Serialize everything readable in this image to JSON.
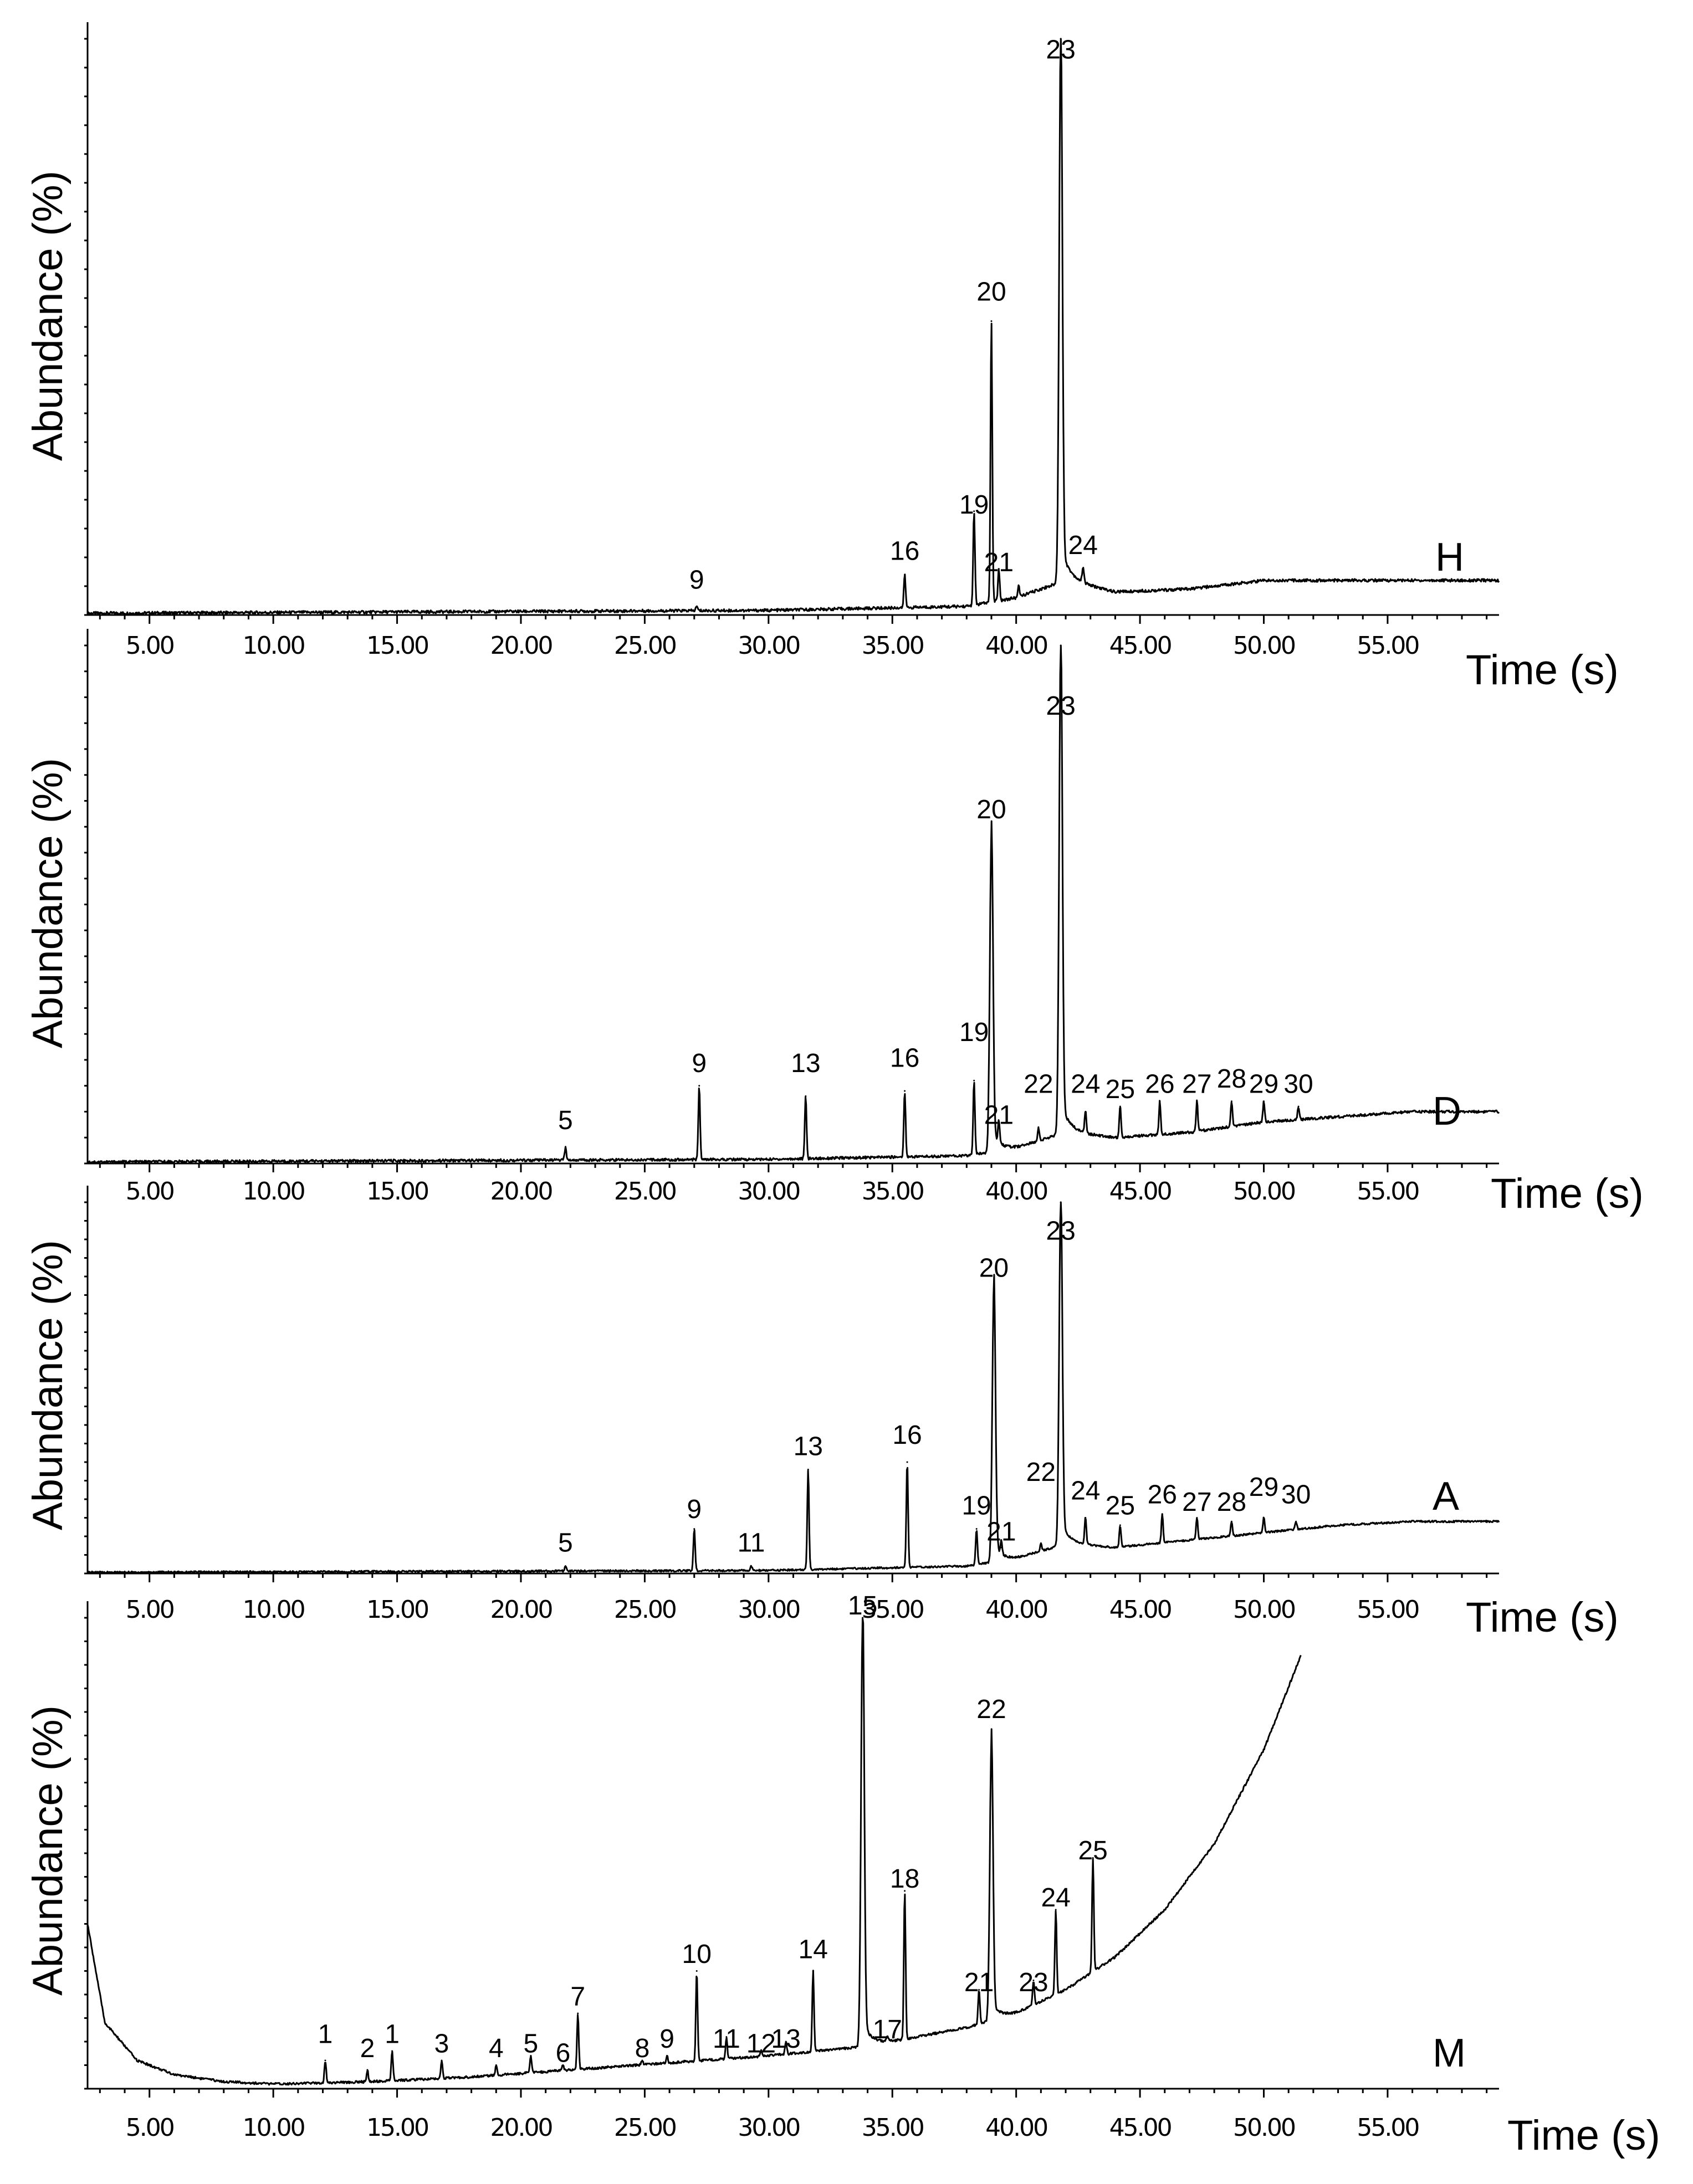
{
  "chart_data": [
    {
      "type": "line",
      "panel": "H",
      "xlabel": "Time (s)",
      "ylabel": "Abundance (%)",
      "x_ticks": [
        "5.00",
        "10.00",
        "15.00",
        "20.00",
        "25.00",
        "30.00",
        "35.00",
        "40.00",
        "45.00",
        "50.00",
        "55.00"
      ],
      "xlim": [
        2.5,
        59.5
      ],
      "ylim": [
        0,
        100
      ],
      "baseline": [
        [
          2.5,
          0.3
        ],
        [
          30,
          0.8
        ],
        [
          38,
          1.5
        ],
        [
          40,
          3
        ],
        [
          42,
          6
        ],
        [
          44,
          4
        ],
        [
          47,
          4.5
        ],
        [
          50,
          6
        ],
        [
          53,
          6
        ],
        [
          56,
          6
        ],
        [
          59.5,
          6
        ]
      ],
      "peaks": [
        {
          "label": "9",
          "rt": 27.1,
          "height": 1.5,
          "label_height": 4
        },
        {
          "label": "16",
          "rt": 35.5,
          "height": 7,
          "label_height": 9
        },
        {
          "label": "19",
          "rt": 38.3,
          "height": 18,
          "label_height": 17
        },
        {
          "label": "20",
          "rt": 39.0,
          "height": 51,
          "label_height": 54
        },
        {
          "label": "21",
          "rt": 39.3,
          "height": 8,
          "label_height": 7
        },
        {
          "label": "",
          "rt": 40.1,
          "height": 5,
          "label_height": 0
        },
        {
          "label": "23",
          "rt": 41.8,
          "height": 100,
          "label_height": 96
        },
        {
          "label": "24",
          "rt": 42.7,
          "height": 8,
          "label_height": 10
        }
      ]
    },
    {
      "type": "line",
      "panel": "D",
      "xlabel": "Time (s)",
      "ylabel": "Abundance (%)",
      "x_ticks": [
        "5.00",
        "10.00",
        "15.00",
        "20.00",
        "25.00",
        "30.00",
        "35.00",
        "40.00",
        "45.00",
        "50.00",
        "55.00"
      ],
      "xlim": [
        2.5,
        59.5
      ],
      "ylim": [
        0,
        100
      ],
      "baseline": [
        [
          2.5,
          0.3
        ],
        [
          30,
          0.8
        ],
        [
          38,
          1.5
        ],
        [
          40,
          3
        ],
        [
          42,
          6
        ],
        [
          44,
          5
        ],
        [
          47,
          6
        ],
        [
          50,
          8
        ],
        [
          53,
          9
        ],
        [
          56,
          10
        ],
        [
          59.5,
          10
        ]
      ],
      "peaks": [
        {
          "label": "5",
          "rt": 21.8,
          "height": 3,
          "label_height": 6
        },
        {
          "label": "9",
          "rt": 27.2,
          "height": 15,
          "label_height": 17
        },
        {
          "label": "13",
          "rt": 31.5,
          "height": 13,
          "label_height": 17
        },
        {
          "label": "16",
          "rt": 35.5,
          "height": 14,
          "label_height": 18
        },
        {
          "label": "19",
          "rt": 38.3,
          "height": 16,
          "label_height": 23
        },
        {
          "label": "20",
          "rt": 39.0,
          "height": 63,
          "label_height": 66
        },
        {
          "label": "21",
          "rt": 39.3,
          "height": 7,
          "label_height": 7
        },
        {
          "label": "22",
          "rt": 40.9,
          "height": 7,
          "label_height": 13
        },
        {
          "label": "23",
          "rt": 41.8,
          "height": 100,
          "label_height": 86
        },
        {
          "label": "24",
          "rt": 42.8,
          "height": 10,
          "label_height": 13
        },
        {
          "label": "25",
          "rt": 44.2,
          "height": 11,
          "label_height": 12
        },
        {
          "label": "26",
          "rt": 45.8,
          "height": 12,
          "label_height": 13
        },
        {
          "label": "27",
          "rt": 47.3,
          "height": 12,
          "label_height": 13
        },
        {
          "label": "28",
          "rt": 48.7,
          "height": 12,
          "label_height": 14
        },
        {
          "label": "29",
          "rt": 50.0,
          "height": 12,
          "label_height": 13
        },
        {
          "label": "30",
          "rt": 51.4,
          "height": 11,
          "label_height": 13
        }
      ]
    },
    {
      "type": "line",
      "panel": "A",
      "xlabel": "Time (s)",
      "ylabel": "Abundance (%)",
      "x_ticks": [
        "5.00",
        "10.00",
        "15.00",
        "20.00",
        "25.00",
        "30.00",
        "35.00",
        "40.00",
        "45.00",
        "50.00",
        "55.00"
      ],
      "xlim": [
        2.5,
        59.5
      ],
      "ylim": [
        0,
        100
      ],
      "baseline": [
        [
          2.5,
          0.3
        ],
        [
          30,
          0.8
        ],
        [
          38,
          2
        ],
        [
          40,
          4
        ],
        [
          42,
          8
        ],
        [
          44,
          7
        ],
        [
          47,
          9
        ],
        [
          50,
          11
        ],
        [
          53,
          13
        ],
        [
          56,
          14
        ],
        [
          59.5,
          14
        ]
      ],
      "peaks": [
        {
          "label": "5",
          "rt": 21.8,
          "height": 2,
          "label_height": 5
        },
        {
          "label": "9",
          "rt": 27.0,
          "height": 12,
          "label_height": 14
        },
        {
          "label": "11",
          "rt": 29.3,
          "height": 2,
          "label_height": 5
        },
        {
          "label": "13",
          "rt": 31.6,
          "height": 28,
          "label_height": 31
        },
        {
          "label": "16",
          "rt": 35.6,
          "height": 30,
          "label_height": 34
        },
        {
          "label": "19",
          "rt": 38.4,
          "height": 12,
          "label_height": 15
        },
        {
          "label": "20",
          "rt": 39.1,
          "height": 77,
          "label_height": 79
        },
        {
          "label": "21",
          "rt": 39.4,
          "height": 7,
          "label_height": 8
        },
        {
          "label": "22",
          "rt": 41.0,
          "height": 8,
          "label_height": 24
        },
        {
          "label": "23",
          "rt": 41.8,
          "height": 100,
          "label_height": 89
        },
        {
          "label": "24",
          "rt": 42.8,
          "height": 15,
          "label_height": 19
        },
        {
          "label": "25",
          "rt": 44.2,
          "height": 13,
          "label_height": 15
        },
        {
          "label": "26",
          "rt": 45.9,
          "height": 16,
          "label_height": 18
        },
        {
          "label": "27",
          "rt": 47.3,
          "height": 15,
          "label_height": 16
        },
        {
          "label": "28",
          "rt": 48.7,
          "height": 14,
          "label_height": 16
        },
        {
          "label": "29",
          "rt": 50.0,
          "height": 15,
          "label_height": 20
        },
        {
          "label": "30",
          "rt": 51.3,
          "height": 14,
          "label_height": 18
        }
      ]
    },
    {
      "type": "line",
      "panel": "M",
      "xlabel": "Time (s)",
      "ylabel": "Abundance (%)",
      "x_ticks": [
        "5.00",
        "10.00",
        "15.00",
        "20.00",
        "25.00",
        "30.00",
        "35.00",
        "40.00",
        "45.00",
        "50.00",
        "55.00"
      ],
      "xlim": [
        2.5,
        59.5
      ],
      "ylim": [
        0,
        100
      ],
      "baseline": [
        [
          2.5,
          35
        ],
        [
          3.2,
          14
        ],
        [
          4.5,
          6
        ],
        [
          6,
          3
        ],
        [
          8,
          1.5
        ],
        [
          10,
          1
        ],
        [
          14,
          1.5
        ],
        [
          18,
          2.5
        ],
        [
          22,
          4
        ],
        [
          26,
          5.5
        ],
        [
          30,
          7
        ],
        [
          34,
          9
        ],
        [
          38,
          13
        ],
        [
          40,
          16
        ],
        [
          42,
          21
        ],
        [
          44,
          28
        ],
        [
          46,
          38
        ],
        [
          48,
          52
        ],
        [
          50,
          72
        ],
        [
          51.5,
          92
        ]
      ],
      "peaks": [
        {
          "label": "1",
          "rt": 12.1,
          "height": 6,
          "label_height": 9
        },
        {
          "label": "2",
          "rt": 13.8,
          "height": 4,
          "label_height": 6
        },
        {
          "label": "1",
          "rt": 14.8,
          "height": 8,
          "label_height": 9
        },
        {
          "label": "3",
          "rt": 16.8,
          "height": 6,
          "label_height": 7
        },
        {
          "label": "4",
          "rt": 19.0,
          "height": 5,
          "label_height": 6
        },
        {
          "label": "5",
          "rt": 20.4,
          "height": 7,
          "label_height": 7
        },
        {
          "label": "6",
          "rt": 21.7,
          "height": 5,
          "label_height": 5
        },
        {
          "label": "7",
          "rt": 22.3,
          "height": 16,
          "label_height": 17
        },
        {
          "label": "8",
          "rt": 24.9,
          "height": 6,
          "label_height": 6
        },
        {
          "label": "9",
          "rt": 25.9,
          "height": 7,
          "label_height": 8
        },
        {
          "label": "10",
          "rt": 27.1,
          "height": 25,
          "label_height": 26
        },
        {
          "label": "11",
          "rt": 28.3,
          "height": 11,
          "label_height": 8
        },
        {
          "label": "12",
          "rt": 29.7,
          "height": 8,
          "label_height": 7
        },
        {
          "label": "13",
          "rt": 30.7,
          "height": 10,
          "label_height": 8
        },
        {
          "label": "14",
          "rt": 31.8,
          "height": 25,
          "label_height": 27
        },
        {
          "label": "15",
          "rt": 33.8,
          "height": 100,
          "label_height": 100
        },
        {
          "label": "17",
          "rt": 34.8,
          "height": 11,
          "label_height": 10
        },
        {
          "label": "18",
          "rt": 35.5,
          "height": 42,
          "label_height": 42
        },
        {
          "label": "21",
          "rt": 38.5,
          "height": 21,
          "label_height": 20
        },
        {
          "label": "22",
          "rt": 39.0,
          "height": 73,
          "label_height": 78
        },
        {
          "label": "23",
          "rt": 40.7,
          "height": 23,
          "label_height": 20
        },
        {
          "label": "24",
          "rt": 41.6,
          "height": 38,
          "label_height": 38
        },
        {
          "label": "25",
          "rt": 43.1,
          "height": 49,
          "label_height": 48
        }
      ]
    }
  ]
}
